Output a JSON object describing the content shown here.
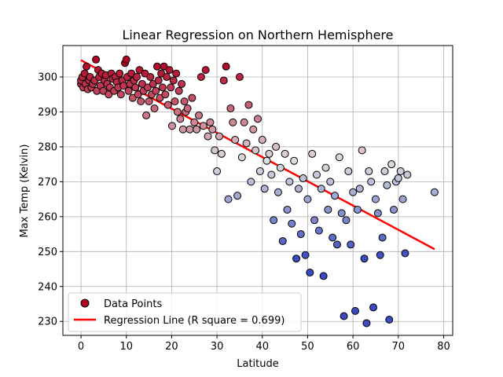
{
  "chart_data": {
    "type": "scatter",
    "title": "Linear Regression on Northern Hemisphere",
    "xlabel": "Latitude",
    "ylabel": "Max Temp (Kelvin)",
    "xlim": [
      -4,
      82
    ],
    "ylim": [
      226,
      309
    ],
    "xticks": [
      0,
      10,
      20,
      30,
      40,
      50,
      60,
      70,
      80
    ],
    "yticks": [
      230,
      240,
      250,
      260,
      270,
      280,
      290,
      300
    ],
    "grid": true,
    "legend_position": "lower-left",
    "colors": {
      "regression_line": "#ff0000",
      "legend_marker": "#b40426",
      "point_edge": "#000000",
      "colormap_low": "#3b4cc0",
      "colormap_mid": "#dddddd",
      "colormap_high": "#b40426"
    },
    "legend": [
      {
        "name": "Data Points",
        "kind": "marker"
      },
      {
        "name": "Regression Line (R square = 0.699)",
        "kind": "line"
      }
    ],
    "regression": {
      "slope": -0.6937,
      "intercept": 304.8,
      "x_range": [
        0,
        78
      ]
    },
    "points": [
      [
        0,
        298
      ],
      [
        0,
        299
      ],
      [
        0.3,
        300
      ],
      [
        0.5,
        297
      ],
      [
        0.8,
        301
      ],
      [
        1,
        298
      ],
      [
        1.2,
        303
      ],
      [
        1.5,
        296.5
      ],
      [
        1.8,
        299
      ],
      [
        2,
        300
      ],
      [
        2.3,
        297
      ],
      [
        2.6,
        298
      ],
      [
        3,
        299
      ],
      [
        3.3,
        305
      ],
      [
        3.5,
        296
      ],
      [
        3.8,
        302
      ],
      [
        4,
        300
      ],
      [
        4.3,
        297.5
      ],
      [
        4.6,
        301
      ],
      [
        4.9,
        296
      ],
      [
        5.2,
        299
      ],
      [
        5.5,
        300.5
      ],
      [
        5.8,
        298
      ],
      [
        6.1,
        295
      ],
      [
        6.4,
        297
      ],
      [
        6.7,
        301
      ],
      [
        7,
        299.5
      ],
      [
        7.3,
        296
      ],
      [
        7.6,
        300
      ],
      [
        7.9,
        298.5
      ],
      [
        8.2,
        297
      ],
      [
        8.5,
        301
      ],
      [
        8.8,
        295
      ],
      [
        9.1,
        299
      ],
      [
        9.4,
        297.5
      ],
      [
        9.7,
        304
      ],
      [
        10,
        305
      ],
      [
        10.2,
        300
      ],
      [
        10.5,
        296
      ],
      [
        10.8,
        298
      ],
      [
        11.1,
        301
      ],
      [
        11.4,
        294
      ],
      [
        11.7,
        299
      ],
      [
        12,
        297
      ],
      [
        12.3,
        300
      ],
      [
        12.6,
        295
      ],
      [
        12.9,
        302
      ],
      [
        13.2,
        293
      ],
      [
        13.5,
        298
      ],
      [
        13.8,
        296
      ],
      [
        14.1,
        301
      ],
      [
        14.4,
        289
      ],
      [
        14.7,
        297
      ],
      [
        15,
        293
      ],
      [
        15.3,
        300
      ],
      [
        15.6,
        295
      ],
      [
        15.9,
        298
      ],
      [
        16.2,
        291
      ],
      [
        16.5,
        296
      ],
      [
        16.8,
        303
      ],
      [
        17.1,
        299
      ],
      [
        17.4,
        294
      ],
      [
        17.7,
        301
      ],
      [
        18,
        297
      ],
      [
        18.3,
        303
      ],
      [
        18.6,
        295
      ],
      [
        18.9,
        300
      ],
      [
        19.2,
        292
      ],
      [
        19.5,
        302
      ],
      [
        19.8,
        297
      ],
      [
        20.1,
        286
      ],
      [
        20.4,
        299
      ],
      [
        20.7,
        293
      ],
      [
        21,
        301
      ],
      [
        21.3,
        290
      ],
      [
        21.6,
        296
      ],
      [
        21.9,
        288
      ],
      [
        22.2,
        298
      ],
      [
        22.5,
        285
      ],
      [
        22.8,
        293
      ],
      [
        23.1,
        290
      ],
      [
        23.5,
        291
      ],
      [
        24,
        285
      ],
      [
        24.5,
        294
      ],
      [
        25,
        287
      ],
      [
        25.5,
        285
      ],
      [
        26,
        289
      ],
      [
        26.5,
        300
      ],
      [
        27,
        286
      ],
      [
        27.5,
        302
      ],
      [
        28,
        283
      ],
      [
        28.5,
        287
      ],
      [
        29,
        285
      ],
      [
        29.5,
        279
      ],
      [
        30,
        273
      ],
      [
        30.5,
        283
      ],
      [
        31,
        278
      ],
      [
        31.5,
        299
      ],
      [
        32,
        303
      ],
      [
        32.5,
        265
      ],
      [
        33,
        291
      ],
      [
        33.5,
        287
      ],
      [
        34,
        282
      ],
      [
        34.5,
        266
      ],
      [
        35,
        300
      ],
      [
        35.5,
        277
      ],
      [
        36,
        287
      ],
      [
        36.5,
        281
      ],
      [
        37,
        292
      ],
      [
        37.5,
        270
      ],
      [
        38,
        285
      ],
      [
        38.5,
        279
      ],
      [
        39,
        288
      ],
      [
        39.5,
        273
      ],
      [
        40,
        282
      ],
      [
        40.5,
        268
      ],
      [
        41,
        276
      ],
      [
        41.5,
        278
      ],
      [
        42,
        272
      ],
      [
        42.5,
        259
      ],
      [
        43,
        280
      ],
      [
        43.5,
        267
      ],
      [
        44,
        274
      ],
      [
        44.5,
        253
      ],
      [
        45,
        278
      ],
      [
        45.5,
        262
      ],
      [
        46,
        270
      ],
      [
        46.5,
        258
      ],
      [
        47,
        276
      ],
      [
        47.5,
        248
      ],
      [
        48,
        268
      ],
      [
        48.5,
        255
      ],
      [
        49,
        271
      ],
      [
        49.5,
        249
      ],
      [
        50,
        265
      ],
      [
        50.5,
        244
      ],
      [
        51,
        278
      ],
      [
        51.5,
        259
      ],
      [
        52,
        272
      ],
      [
        52.5,
        256
      ],
      [
        53,
        268
      ],
      [
        53.5,
        243
      ],
      [
        54,
        274
      ],
      [
        54.5,
        262
      ],
      [
        55,
        270
      ],
      [
        55.5,
        254
      ],
      [
        56,
        266
      ],
      [
        56.5,
        252
      ],
      [
        57,
        277
      ],
      [
        57.5,
        261
      ],
      [
        58,
        231.5
      ],
      [
        58.5,
        259
      ],
      [
        59,
        273
      ],
      [
        59.5,
        252
      ],
      [
        60,
        267
      ],
      [
        60.5,
        233
      ],
      [
        61,
        262
      ],
      [
        61.5,
        268
      ],
      [
        62,
        279
      ],
      [
        62.5,
        248
      ],
      [
        63,
        229.5
      ],
      [
        63.5,
        273
      ],
      [
        64,
        270
      ],
      [
        64.5,
        234
      ],
      [
        65,
        265
      ],
      [
        65.5,
        261
      ],
      [
        66,
        249
      ],
      [
        66.5,
        254
      ],
      [
        67,
        273
      ],
      [
        67.5,
        269
      ],
      [
        68,
        230.5
      ],
      [
        68.5,
        275
      ],
      [
        69,
        262
      ],
      [
        69.5,
        270
      ],
      [
        70,
        271
      ],
      [
        70.5,
        273
      ],
      [
        71,
        265
      ],
      [
        71.5,
        249.5
      ],
      [
        72,
        272
      ],
      [
        78,
        267
      ]
    ]
  }
}
